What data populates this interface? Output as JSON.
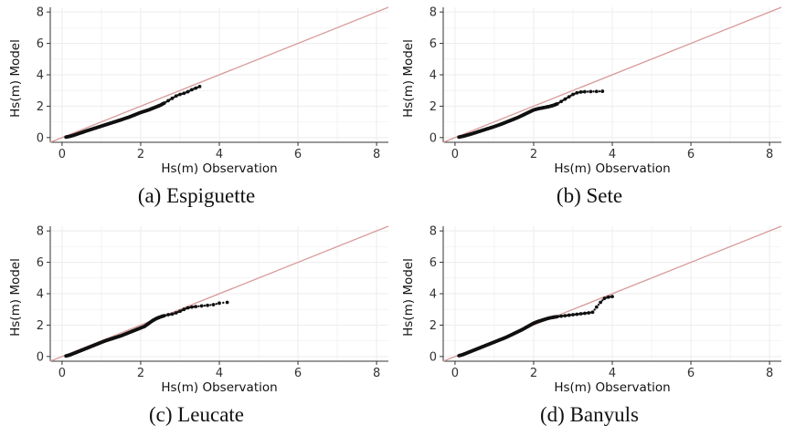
{
  "chart_data": [
    {
      "type": "scatter",
      "caption": "(a) Espiguette",
      "xlabel": "Hs(m) Observation",
      "ylabel": "Hs(m) Model",
      "xticks": [
        0,
        2,
        4,
        6,
        8
      ],
      "yticks": [
        0,
        2,
        4,
        6,
        8
      ],
      "xlim": [
        -0.3,
        8.3
      ],
      "ylim": [
        -0.3,
        8.3
      ],
      "grid": true,
      "reference_line": "y = x",
      "points": [
        [
          0.1,
          0.03
        ],
        [
          0.2,
          0.08
        ],
        [
          0.3,
          0.15
        ],
        [
          0.4,
          0.24
        ],
        [
          0.5,
          0.32
        ],
        [
          0.6,
          0.41
        ],
        [
          0.7,
          0.49
        ],
        [
          0.8,
          0.57
        ],
        [
          0.9,
          0.65
        ],
        [
          1.0,
          0.73
        ],
        [
          1.1,
          0.81
        ],
        [
          1.2,
          0.89
        ],
        [
          1.3,
          0.97
        ],
        [
          1.4,
          1.05
        ],
        [
          1.5,
          1.13
        ],
        [
          1.6,
          1.22
        ],
        [
          1.7,
          1.3
        ],
        [
          1.8,
          1.4
        ],
        [
          1.9,
          1.5
        ],
        [
          2.0,
          1.6
        ],
        [
          2.1,
          1.68
        ],
        [
          2.2,
          1.76
        ],
        [
          2.3,
          1.86
        ],
        [
          2.4,
          1.96
        ],
        [
          2.5,
          2.06
        ],
        [
          2.6,
          2.2
        ],
        [
          2.7,
          2.35
        ],
        [
          2.8,
          2.5
        ],
        [
          2.9,
          2.65
        ],
        [
          3.0,
          2.75
        ],
        [
          3.1,
          2.82
        ],
        [
          3.2,
          2.92
        ],
        [
          3.3,
          3.05
        ],
        [
          3.4,
          3.15
        ],
        [
          3.5,
          3.25
        ]
      ]
    },
    {
      "type": "scatter",
      "caption": "(b) Sete",
      "xlabel": "Hs(m) Observation",
      "ylabel": "Hs(m) Model",
      "xticks": [
        0,
        2,
        4,
        6,
        8
      ],
      "yticks": [
        0,
        2,
        4,
        6,
        8
      ],
      "xlim": [
        -0.3,
        8.3
      ],
      "ylim": [
        -0.3,
        8.3
      ],
      "grid": true,
      "reference_line": "y = x",
      "points": [
        [
          0.1,
          0.03
        ],
        [
          0.2,
          0.08
        ],
        [
          0.3,
          0.15
        ],
        [
          0.4,
          0.22
        ],
        [
          0.5,
          0.3
        ],
        [
          0.6,
          0.38
        ],
        [
          0.7,
          0.46
        ],
        [
          0.8,
          0.54
        ],
        [
          0.9,
          0.62
        ],
        [
          1.0,
          0.7
        ],
        [
          1.1,
          0.79
        ],
        [
          1.2,
          0.88
        ],
        [
          1.3,
          0.98
        ],
        [
          1.4,
          1.08
        ],
        [
          1.5,
          1.18
        ],
        [
          1.6,
          1.28
        ],
        [
          1.7,
          1.4
        ],
        [
          1.8,
          1.52
        ],
        [
          1.9,
          1.64
        ],
        [
          2.0,
          1.76
        ],
        [
          2.1,
          1.83
        ],
        [
          2.2,
          1.88
        ],
        [
          2.3,
          1.93
        ],
        [
          2.4,
          1.98
        ],
        [
          2.5,
          2.05
        ],
        [
          2.6,
          2.15
        ],
        [
          2.7,
          2.3
        ],
        [
          2.8,
          2.45
        ],
        [
          2.9,
          2.6
        ],
        [
          3.0,
          2.75
        ],
        [
          3.1,
          2.85
        ],
        [
          3.2,
          2.9
        ],
        [
          3.3,
          2.92
        ],
        [
          3.45,
          2.93
        ],
        [
          3.6,
          2.94
        ],
        [
          3.75,
          2.95
        ]
      ]
    },
    {
      "type": "scatter",
      "caption": "(c) Leucate",
      "xlabel": "Hs(m) Observation",
      "ylabel": "Hs(m) Model",
      "xticks": [
        0,
        2,
        4,
        6,
        8
      ],
      "yticks": [
        0,
        2,
        4,
        6,
        8
      ],
      "xlim": [
        -0.3,
        8.3
      ],
      "ylim": [
        -0.3,
        8.3
      ],
      "grid": true,
      "reference_line": "y = x",
      "points": [
        [
          0.1,
          0.03
        ],
        [
          0.2,
          0.1
        ],
        [
          0.3,
          0.2
        ],
        [
          0.4,
          0.3
        ],
        [
          0.5,
          0.4
        ],
        [
          0.6,
          0.5
        ],
        [
          0.7,
          0.6
        ],
        [
          0.8,
          0.7
        ],
        [
          0.9,
          0.8
        ],
        [
          1.0,
          0.9
        ],
        [
          1.1,
          1.0
        ],
        [
          1.2,
          1.08
        ],
        [
          1.3,
          1.16
        ],
        [
          1.4,
          1.24
        ],
        [
          1.5,
          1.32
        ],
        [
          1.6,
          1.42
        ],
        [
          1.7,
          1.52
        ],
        [
          1.8,
          1.62
        ],
        [
          1.9,
          1.72
        ],
        [
          2.0,
          1.82
        ],
        [
          2.1,
          1.92
        ],
        [
          2.2,
          2.1
        ],
        [
          2.3,
          2.28
        ],
        [
          2.4,
          2.42
        ],
        [
          2.5,
          2.52
        ],
        [
          2.6,
          2.6
        ],
        [
          2.7,
          2.66
        ],
        [
          2.8,
          2.7
        ],
        [
          2.9,
          2.78
        ],
        [
          3.0,
          2.88
        ],
        [
          3.1,
          3.0
        ],
        [
          3.2,
          3.1
        ],
        [
          3.3,
          3.15
        ],
        [
          3.4,
          3.18
        ],
        [
          3.55,
          3.22
        ],
        [
          3.7,
          3.26
        ],
        [
          3.85,
          3.3
        ],
        [
          4.0,
          3.4
        ],
        [
          4.2,
          3.45
        ]
      ]
    },
    {
      "type": "scatter",
      "caption": "(d) Banyuls",
      "xlabel": "Hs(m) Observation",
      "ylabel": "Hs(m) Model",
      "xticks": [
        0,
        2,
        4,
        6,
        8
      ],
      "yticks": [
        0,
        2,
        4,
        6,
        8
      ],
      "xlim": [
        -0.3,
        8.3
      ],
      "ylim": [
        -0.3,
        8.3
      ],
      "grid": true,
      "reference_line": "y = x",
      "points": [
        [
          0.1,
          0.05
        ],
        [
          0.2,
          0.12
        ],
        [
          0.3,
          0.22
        ],
        [
          0.4,
          0.32
        ],
        [
          0.5,
          0.42
        ],
        [
          0.6,
          0.52
        ],
        [
          0.7,
          0.62
        ],
        [
          0.8,
          0.72
        ],
        [
          0.9,
          0.82
        ],
        [
          1.0,
          0.92
        ],
        [
          1.1,
          1.02
        ],
        [
          1.2,
          1.12
        ],
        [
          1.3,
          1.22
        ],
        [
          1.4,
          1.34
        ],
        [
          1.5,
          1.46
        ],
        [
          1.6,
          1.58
        ],
        [
          1.7,
          1.7
        ],
        [
          1.8,
          1.84
        ],
        [
          1.9,
          1.98
        ],
        [
          2.0,
          2.12
        ],
        [
          2.1,
          2.22
        ],
        [
          2.2,
          2.3
        ],
        [
          2.3,
          2.38
        ],
        [
          2.4,
          2.45
        ],
        [
          2.5,
          2.5
        ],
        [
          2.6,
          2.54
        ],
        [
          2.7,
          2.57
        ],
        [
          2.8,
          2.6
        ],
        [
          2.9,
          2.63
        ],
        [
          3.0,
          2.66
        ],
        [
          3.1,
          2.69
        ],
        [
          3.2,
          2.72
        ],
        [
          3.3,
          2.75
        ],
        [
          3.4,
          2.78
        ],
        [
          3.5,
          2.82
        ],
        [
          3.6,
          3.15
        ],
        [
          3.7,
          3.45
        ],
        [
          3.8,
          3.7
        ],
        [
          3.9,
          3.78
        ],
        [
          4.0,
          3.82
        ]
      ]
    }
  ],
  "colors": {
    "points": "#111111",
    "reference_line": "#d99a9a",
    "grid": "#ececec",
    "axis": "#333333"
  }
}
